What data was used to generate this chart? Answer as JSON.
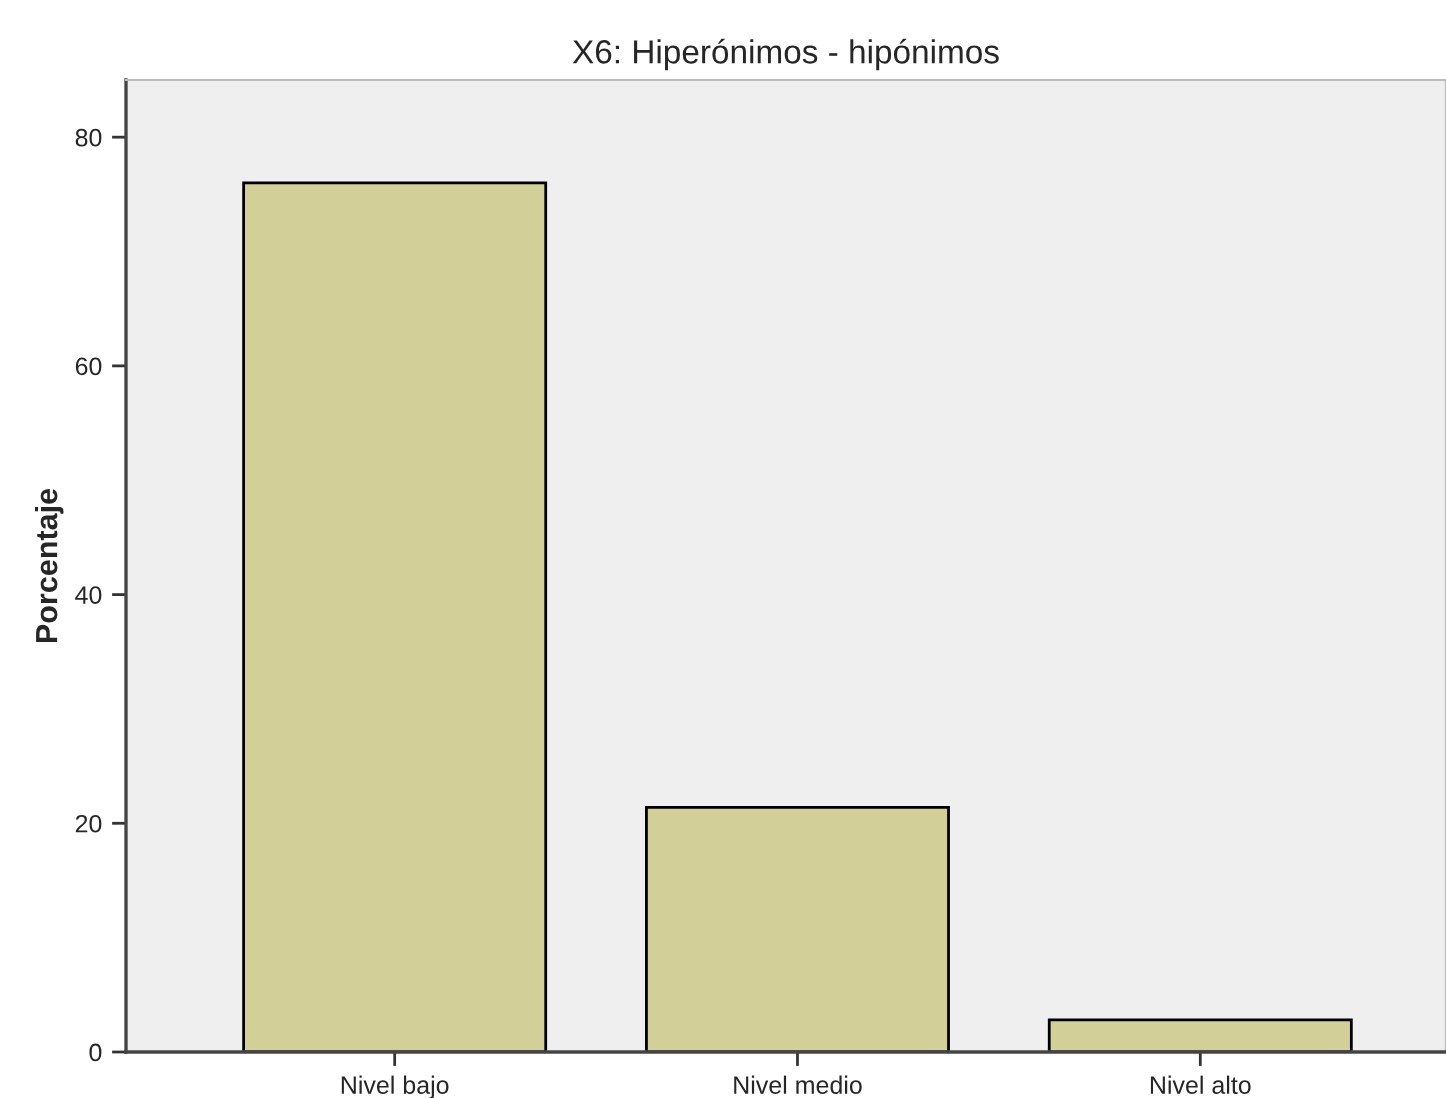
{
  "chart_data": {
    "type": "bar",
    "title": "X6: Hiperónimos - hipónimos",
    "ylabel": "Porcentaje",
    "categories": [
      "Nivel bajo",
      "Nivel medio",
      "Nivel alto"
    ],
    "values": [
      76.0,
      21.4,
      2.8
    ],
    "color": "#d3cf98",
    "ylim": [
      0,
      85
    ],
    "yticks": [
      0,
      20,
      40,
      60,
      80
    ],
    "grid": false,
    "legend": false
  }
}
